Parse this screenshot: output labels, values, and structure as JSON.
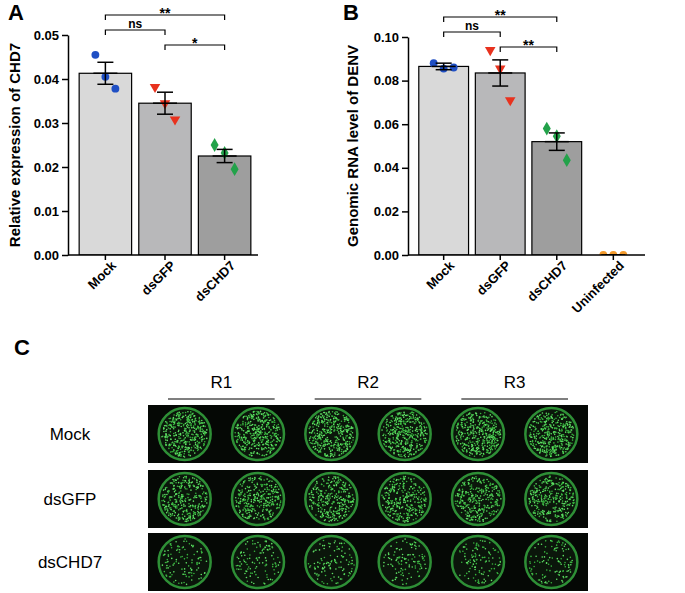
{
  "chart_data": [
    {
      "type": "bar",
      "panel": "A",
      "y_label": "Relative expression of CHD7",
      "categories": [
        "Mock",
        "dsGFP",
        "dsCHD7"
      ],
      "values": [
        0.0413,
        0.0345,
        0.0225
      ],
      "errors": [
        0.0025,
        0.0025,
        0.0015
      ],
      "colors": [
        "#d9d9d9",
        "#b8b8ba",
        "#9e9e9e"
      ],
      "points": [
        {
          "values": [
            0.0455,
            0.0405,
            0.0378
          ],
          "color": "#1f4fc4",
          "marker": "circle"
        },
        {
          "values": [
            0.0382,
            0.0345,
            0.0308
          ],
          "color": "#e8321e",
          "marker": "triangle-down"
        },
        {
          "values": [
            0.025,
            0.0232,
            0.0195
          ],
          "color": "#23a24a",
          "marker": "diamond"
        }
      ],
      "ylim": [
        0,
        0.05
      ],
      "yticks": [
        {
          "value": 0,
          "label": "0.00"
        },
        {
          "value": 0.01,
          "label": "0.01"
        },
        {
          "value": 0.02,
          "label": "0.02"
        },
        {
          "value": 0.03,
          "label": "0.03"
        },
        {
          "value": 0.04,
          "label": "0.04"
        },
        {
          "value": 0.05,
          "label": "0.05"
        }
      ],
      "significance": [
        {
          "pair": [
            "Mock",
            "dsCHD7"
          ],
          "label": "**"
        },
        {
          "pair": [
            "Mock",
            "dsGFP"
          ],
          "label": "ns"
        },
        {
          "pair": [
            "dsGFP",
            "dsCHD7"
          ],
          "label": "*"
        }
      ]
    },
    {
      "type": "bar",
      "panel": "B",
      "y_label": "Genomic RNA level of DENV",
      "categories": [
        "Mock",
        "dsGFP",
        "dsCHD7",
        "Uninfected"
      ],
      "values": [
        0.0865,
        0.0835,
        0.052,
        0
      ],
      "errors": [
        0.0015,
        0.006,
        0.004,
        0
      ],
      "colors": [
        "#d9d9d9",
        "#b8b8ba",
        "#9e9e9e",
        "#9e9e9e"
      ],
      "points": [
        {
          "values": [
            0.088,
            0.0855,
            0.086
          ],
          "color": "#1f4fc4",
          "marker": "circle"
        },
        {
          "values": [
            0.094,
            0.0855,
            0.071
          ],
          "color": "#e8321e",
          "marker": "triangle-down"
        },
        {
          "values": [
            0.058,
            0.0545,
            0.0435
          ],
          "color": "#23a24a",
          "marker": "diamond"
        },
        {
          "values": [
            0,
            0,
            0
          ],
          "color": "#f39a2c",
          "marker": "circle"
        }
      ],
      "ylim": [
        0,
        0.1
      ],
      "yticks": [
        {
          "value": 0,
          "label": "0.00"
        },
        {
          "value": 0.02,
          "label": "0.02"
        },
        {
          "value": 0.04,
          "label": "0.04"
        },
        {
          "value": 0.06,
          "label": "0.06"
        },
        {
          "value": 0.08,
          "label": "0.08"
        },
        {
          "value": 0.1,
          "label": "0.10"
        }
      ],
      "significance": [
        {
          "pair": [
            "Mock",
            "dsCHD7"
          ],
          "label": "**"
        },
        {
          "pair": [
            "Mock",
            "dsGFP"
          ],
          "label": "ns"
        },
        {
          "pair": [
            "dsGFP",
            "dsCHD7"
          ],
          "label": "**"
        }
      ]
    }
  ],
  "image_panel": {
    "panel": "C",
    "columns": [
      "R1",
      "R2",
      "R3"
    ],
    "rows": [
      "Mock",
      "dsGFP",
      "dsCHD7"
    ]
  }
}
